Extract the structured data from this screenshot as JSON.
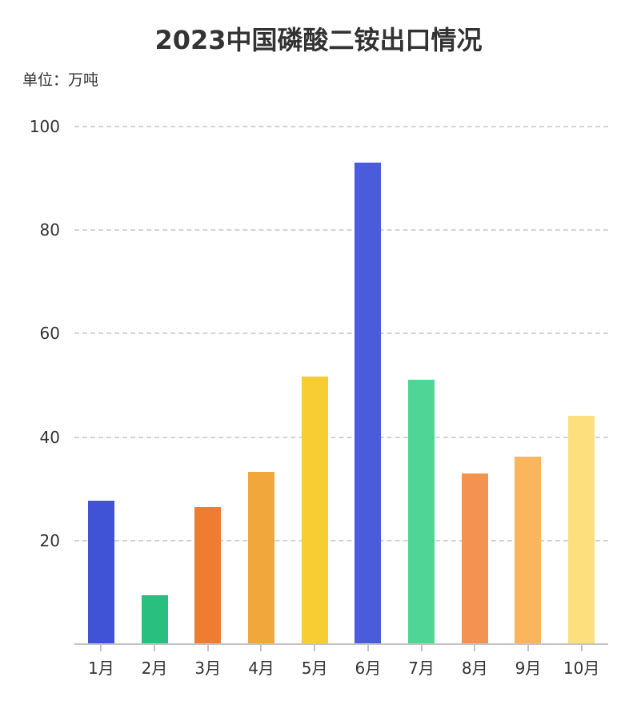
{
  "title": "2023中国磷酸二铵出口情况",
  "unit_label": "单位：万吨",
  "chart_data": {
    "type": "bar",
    "title": "2023中国磷酸二铵出口情况",
    "subtitle": "单位：万吨",
    "xlabel": "",
    "ylabel": "万吨",
    "categories": [
      "1月",
      "2月",
      "3月",
      "4月",
      "5月",
      "6月",
      "7月",
      "8月",
      "9月",
      "10月"
    ],
    "values": [
      27.7,
      9.5,
      26.4,
      33.3,
      51.7,
      93.0,
      51.1,
      33.0,
      36.3,
      44.1
    ],
    "colors": [
      "#4052d6",
      "#29bf7e",
      "#ee7d31",
      "#f1a73b",
      "#f7cd33",
      "#4a5bdc",
      "#4fd696",
      "#f4924f",
      "#fbb55d",
      "#fedf7e"
    ],
    "ylim": [
      0,
      100
    ],
    "yticks": [
      20,
      40,
      60,
      80,
      100
    ],
    "grid": true,
    "legend": "none"
  }
}
